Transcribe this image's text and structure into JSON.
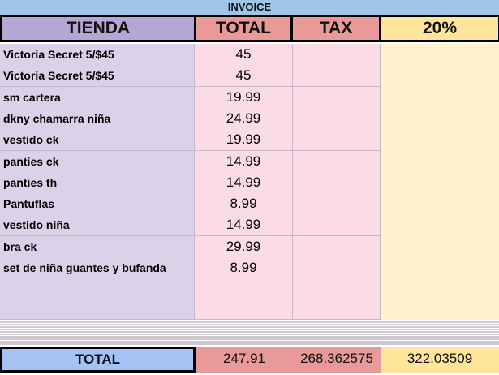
{
  "title": "INVOICE",
  "headers": [
    "TIENDA",
    "TOTAL",
    "TAX",
    "20%"
  ],
  "rows": [
    {
      "tienda": "Victoria Secret 5/$45",
      "total": "45"
    },
    {
      "tienda": "Victoria Secret 5/$45",
      "total": "45"
    },
    {
      "tienda": "sm cartera",
      "total": "19.99"
    },
    {
      "tienda": "dkny chamarra niña",
      "total": "24.99"
    },
    {
      "tienda": "vestido ck",
      "total": "19.99"
    },
    {
      "tienda": "panties ck",
      "total": "14.99"
    },
    {
      "tienda": "panties th",
      "total": "14.99"
    },
    {
      "tienda": "Pantuflas",
      "total": "8.99"
    },
    {
      "tienda": "vestido niña",
      "total": "14.99"
    },
    {
      "tienda": "bra ck",
      "total": "29.99"
    },
    {
      "tienda": "set de niña guantes y bufanda",
      "total": "8.99"
    },
    {
      "tienda": "",
      "total": ""
    },
    {
      "tienda": "",
      "total": ""
    }
  ],
  "totals": {
    "label": "TOTAL",
    "total": "247.91",
    "tax": "268.362575",
    "pct": "322.03509"
  },
  "colors": {
    "title": "#9fc5e8",
    "tienda": "#b4a7d6",
    "total": "#ea9999",
    "pct": "#ffe599",
    "total_label": "#a4c2f4"
  }
}
